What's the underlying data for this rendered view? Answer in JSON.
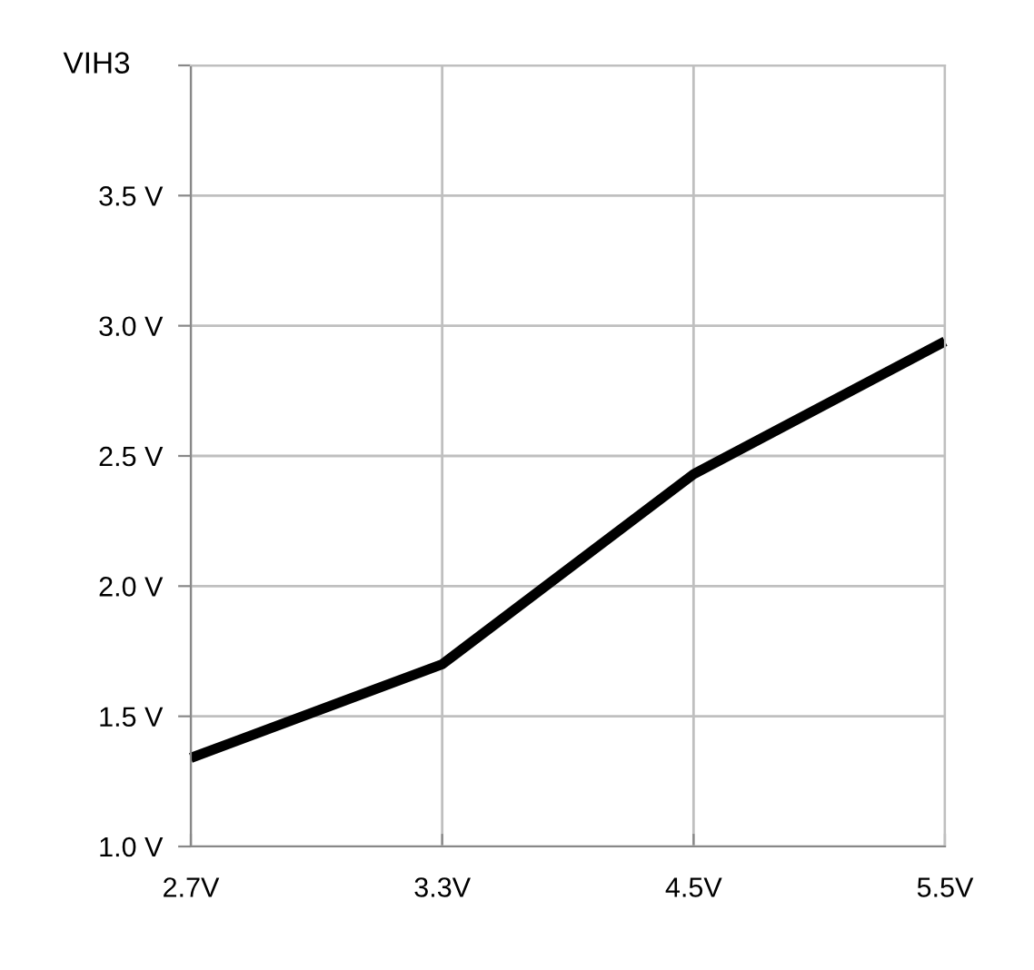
{
  "chart_data": {
    "type": "line",
    "ylabel": "VIH3",
    "categories": [
      "2.7V",
      "3.3V",
      "4.5V",
      "5.5V"
    ],
    "series": [
      {
        "color": "#000000",
        "values": [
          1.34,
          1.7,
          2.43,
          2.94
        ]
      }
    ],
    "ylim": [
      1.0,
      4.0
    ],
    "yticks": [
      {
        "value": 1.0,
        "label": "1.0 V"
      },
      {
        "value": 1.5,
        "label": "1.5 V"
      },
      {
        "value": 2.0,
        "label": "2.0 V"
      },
      {
        "value": 2.5,
        "label": "2.5 V"
      },
      {
        "value": 3.0,
        "label": "3.0 V"
      },
      {
        "value": 3.5,
        "label": "3.5 V"
      },
      {
        "value": 4.0,
        "label": null
      }
    ],
    "grid": true,
    "marker": "none",
    "line_style": "solid"
  }
}
